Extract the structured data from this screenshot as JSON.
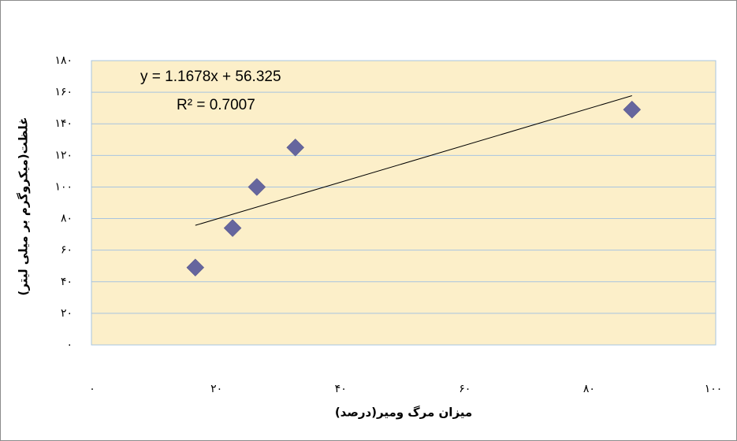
{
  "chart_data": {
    "type": "scatter",
    "x_label": "میزان مرگ ومیر(درصد)",
    "y_label": "غلظت(میکروگرم بر میلی لیتر)",
    "series": [
      {
        "color": "#66669e",
        "x": [
          16.6,
          22.6,
          26.5,
          32.7,
          86.9
        ],
        "values": [
          49,
          74,
          100,
          125,
          149
        ]
      }
    ],
    "trendline": {
      "equation": "y = 1.1678x + 56.325",
      "slope": 1.1678,
      "intercept": 56.325,
      "r2_label": "R² = 0.7007",
      "r2": 0.7007,
      "color": "#000000"
    },
    "xlim": [
      0,
      100
    ],
    "xticks": [
      {
        "value": 0,
        "label": "۰"
      },
      {
        "value": 20,
        "label": "۲۰"
      },
      {
        "value": 40,
        "label": "۴۰"
      },
      {
        "value": 60,
        "label": "۶۰"
      },
      {
        "value": 80,
        "label": "۸۰"
      },
      {
        "value": 100,
        "label": "۱۰۰"
      }
    ],
    "ylim": [
      0,
      180
    ],
    "yticks": [
      {
        "value": 0,
        "label": "۰"
      },
      {
        "value": 20,
        "label": "۲۰"
      },
      {
        "value": 40,
        "label": "۴۰"
      },
      {
        "value": 60,
        "label": "۶۰"
      },
      {
        "value": 80,
        "label": "۸۰"
      },
      {
        "value": 100,
        "label": "۱۰۰"
      },
      {
        "value": 120,
        "label": "۱۲۰"
      },
      {
        "value": 140,
        "label": "۱۴۰"
      },
      {
        "value": 160,
        "label": "۱۶۰"
      },
      {
        "value": 180,
        "label": "۱۸۰"
      }
    ],
    "grid": true
  }
}
